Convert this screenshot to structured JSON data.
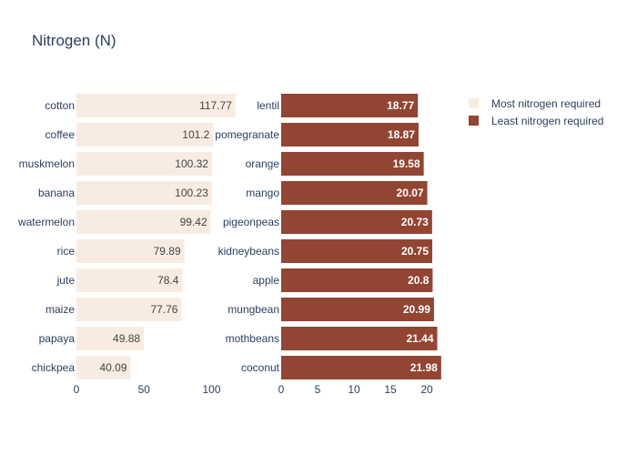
{
  "chart_data": {
    "type": "bar",
    "title": "Nitrogen (N)",
    "orientation": "horizontal",
    "legend_position": "top-right",
    "grid": false,
    "series": [
      {
        "name": "Most nitrogen required",
        "color": "#f8ece2",
        "categories": [
          "cotton",
          "coffee",
          "muskmelon",
          "banana",
          "watermelon",
          "rice",
          "jute",
          "maize",
          "papaya",
          "chickpea"
        ],
        "values": [
          117.77,
          101.2,
          100.32,
          100.23,
          99.42,
          79.89,
          78.4,
          77.76,
          49.88,
          40.09
        ],
        "labels": [
          "117.77",
          "101.2",
          "100.32",
          "100.23",
          "99.42",
          "79.89",
          "78.4",
          "77.76",
          "49.88",
          "40.09"
        ],
        "xlim": [
          0,
          118.5
        ],
        "xticks": [
          0,
          50,
          100
        ]
      },
      {
        "name": "Least nitrogen required",
        "color": "#924533",
        "categories": [
          "lentil",
          "pomegranate",
          "orange",
          "mango",
          "pigeonpeas",
          "kidneybeans",
          "apple",
          "mungbean",
          "mothbeans",
          "coconut"
        ],
        "values": [
          18.77,
          18.87,
          19.58,
          20.07,
          20.73,
          20.75,
          20.8,
          20.99,
          21.44,
          21.98
        ],
        "labels": [
          "18.77",
          "18.87",
          "19.58",
          "20.07",
          "20.73",
          "20.75",
          "20.8",
          "20.99",
          "21.44",
          "21.98"
        ],
        "xlim": [
          0,
          22.0
        ],
        "xticks": [
          0,
          5,
          10,
          15,
          20
        ]
      }
    ]
  }
}
